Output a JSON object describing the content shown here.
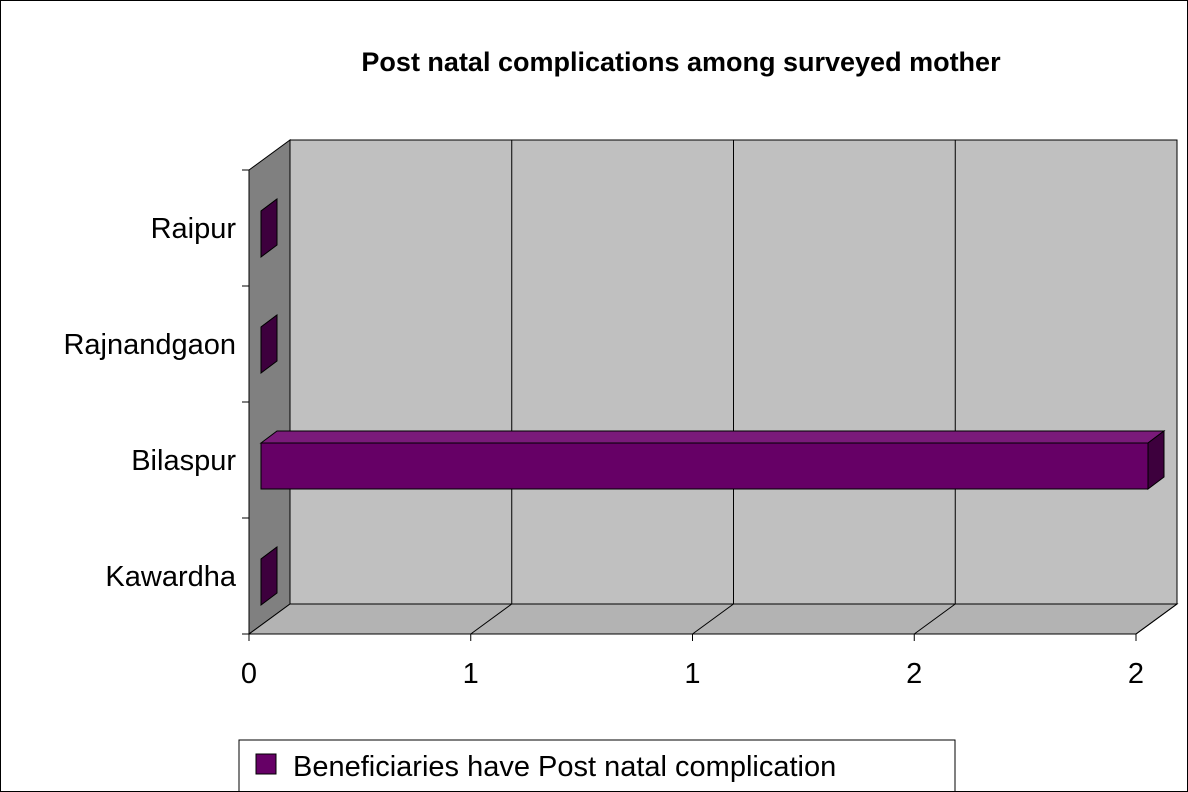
{
  "chart_data": {
    "type": "bar",
    "orientation": "horizontal",
    "three_d": true,
    "title": "Post natal complications among surveyed mother",
    "categories": [
      "Raipur",
      "Rajnandgaon",
      "Bilaspur",
      "Kawardha"
    ],
    "series": [
      {
        "name": "Beneficiaries have Post natal complication",
        "values": [
          0,
          0,
          2,
          0
        ]
      }
    ],
    "x_tick_labels": [
      "0",
      "1",
      "1",
      "2",
      "2"
    ],
    "xlim": [
      0,
      2
    ],
    "grid": true,
    "legend_position": "bottom",
    "colors": {
      "bar_face": "#660066",
      "bar_top": "#7a1a7a",
      "bar_side": "#3d003d",
      "wall": "#c0c0c0",
      "side_wall": "#808080",
      "floor": "#b3b3b3"
    }
  }
}
